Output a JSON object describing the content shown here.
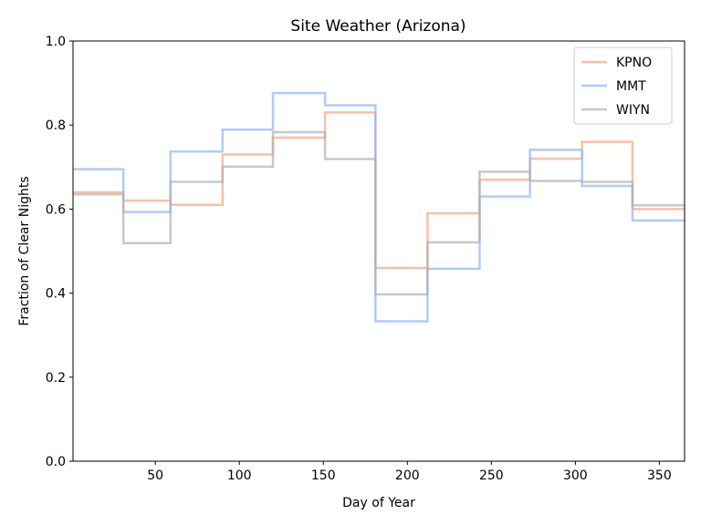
{
  "chart_data": {
    "type": "line",
    "title": "Site Weather (Arizona)",
    "xlabel": "Day of Year",
    "ylabel": "Fraction of Clear Nights",
    "xlim": [
      1,
      365
    ],
    "ylim": [
      0.0,
      1.0
    ],
    "xticks": [
      50,
      100,
      150,
      200,
      250,
      300,
      350
    ],
    "yticks": [
      0.0,
      0.2,
      0.4,
      0.6,
      0.8,
      1.0
    ],
    "xtick_labels": [
      "50",
      "100",
      "150",
      "200",
      "250",
      "300",
      "350"
    ],
    "ytick_labels": [
      "0.0",
      "0.2",
      "0.4",
      "0.6",
      "0.8",
      "1.0"
    ],
    "grid": false,
    "legend_position": "top-right",
    "step_edges": [
      1,
      31,
      59,
      90,
      120,
      151,
      181,
      212,
      243,
      273,
      304,
      334,
      365
    ],
    "series": [
      {
        "name": "KPNO",
        "color": "#f4a582",
        "values": [
          0.64,
          0.62,
          0.61,
          0.73,
          0.77,
          0.83,
          0.46,
          0.59,
          0.67,
          0.72,
          0.76,
          0.6
        ]
      },
      {
        "name": "MMT",
        "color": "#92b4f4",
        "values": [
          0.695,
          0.593,
          0.737,
          0.789,
          0.876,
          0.847,
          0.333,
          0.458,
          0.63,
          0.741,
          0.655,
          0.573
        ]
      },
      {
        "name": "WIYN",
        "color": "#b0b0b0",
        "values": [
          0.635,
          0.519,
          0.665,
          0.701,
          0.783,
          0.719,
          0.397,
          0.521,
          0.689,
          0.667,
          0.665,
          0.609
        ]
      }
    ]
  }
}
